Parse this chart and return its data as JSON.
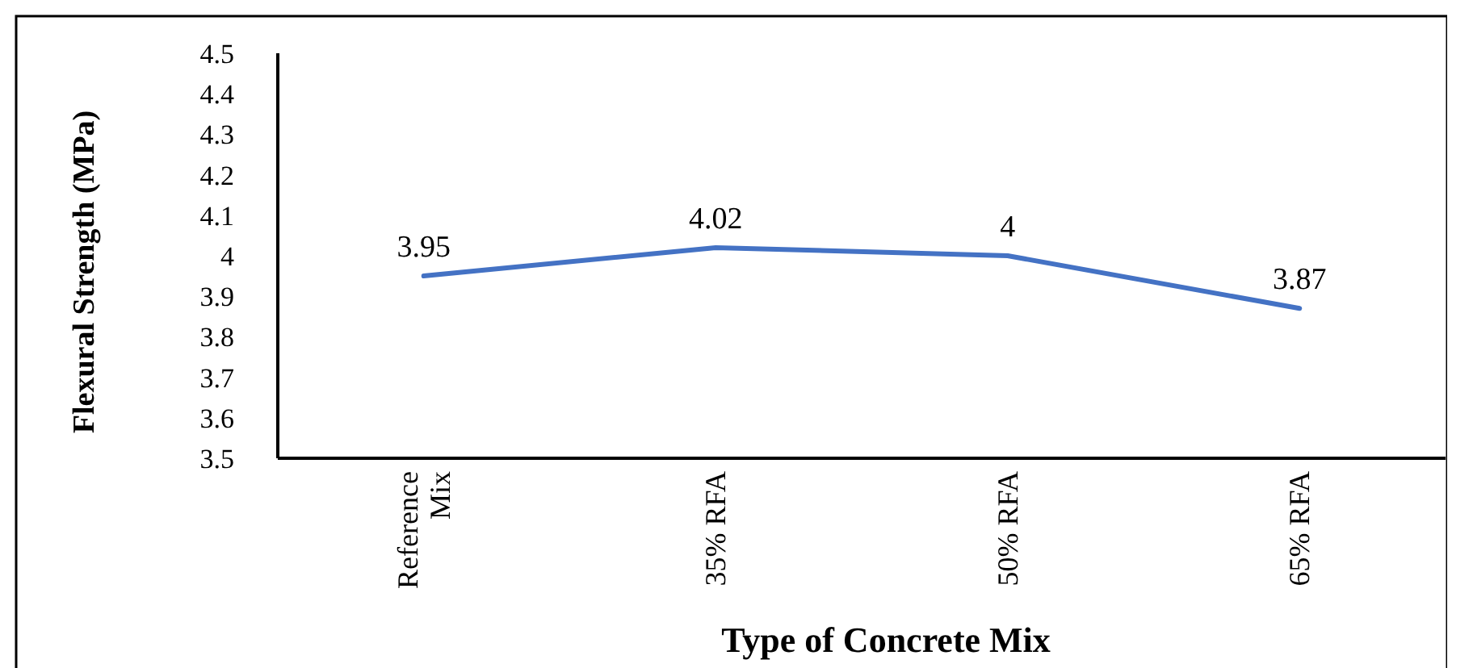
{
  "chart_data": {
    "type": "line",
    "xlabel": "Type of Concrete Mix",
    "ylabel": "Flexural Strength (MPa)",
    "categories": [
      "Reference Mix",
      "35% RFA",
      "50% RFA",
      "65% RFA"
    ],
    "series": [
      {
        "color": "#4472c4",
        "values": [
          3.95,
          4.02,
          4,
          3.87
        ]
      }
    ],
    "ylim": [
      3.5,
      4.5
    ],
    "yticks": [
      3.5,
      3.6,
      3.7,
      3.8,
      3.9,
      4,
      4.1,
      4.2,
      4.3,
      4.4,
      4.5
    ],
    "data_labels": true,
    "marker": "none",
    "line_style": "solid"
  }
}
